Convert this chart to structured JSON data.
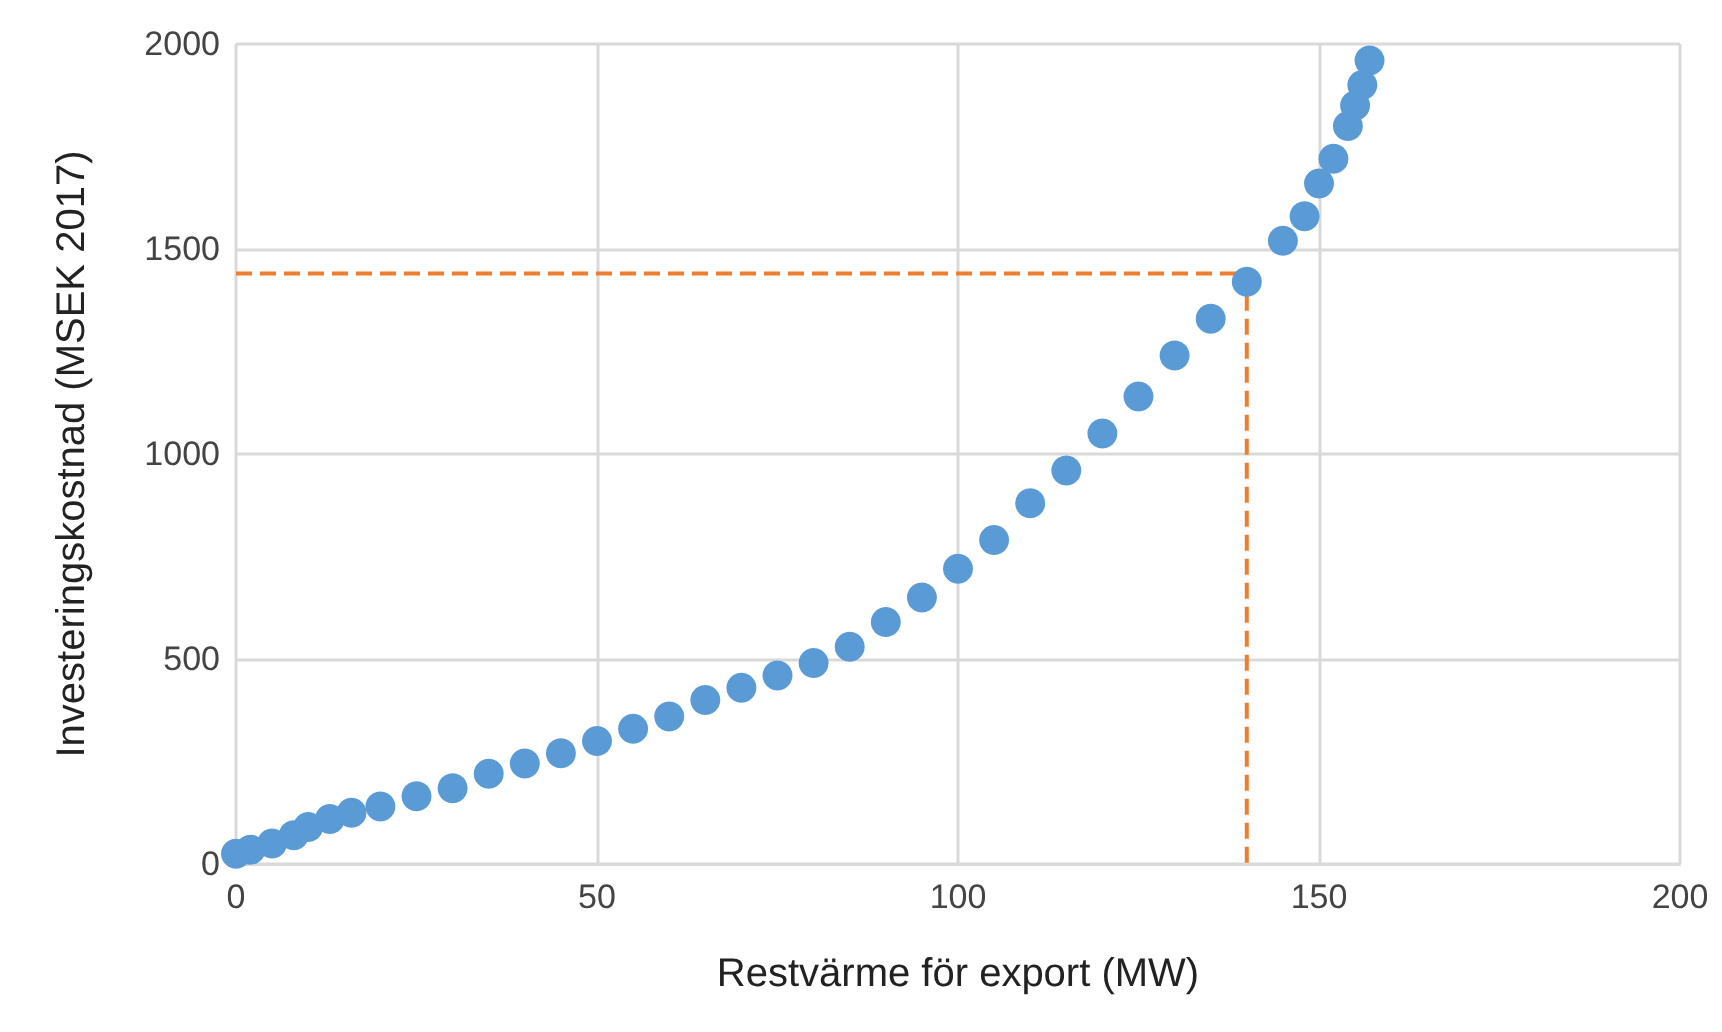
{
  "chart_data": {
    "type": "scatter",
    "xlabel": "Restvärme för export (MW)",
    "ylabel": "Investeringskostnad (MSEK 2017)",
    "xlim": [
      0,
      200
    ],
    "xticks": [
      0,
      50,
      100,
      150,
      200
    ],
    "ylim": [
      0,
      2000
    ],
    "yticks": [
      0,
      500,
      1000,
      1500,
      2000
    ],
    "grid": true,
    "marker": "circle",
    "series": [
      {
        "color": "#5b9bd5",
        "x": [
          0,
          2,
          5,
          8,
          10,
          13,
          16,
          20,
          25,
          30,
          35,
          40,
          45,
          50,
          55,
          60,
          65,
          70,
          75,
          80,
          85,
          90,
          95,
          100,
          105,
          110,
          115,
          120,
          125,
          130,
          135,
          140,
          145,
          148,
          150,
          152,
          154,
          155,
          156,
          157
        ],
        "values": [
          25,
          35,
          50,
          70,
          90,
          110,
          125,
          140,
          165,
          185,
          220,
          245,
          270,
          300,
          330,
          360,
          400,
          430,
          460,
          490,
          530,
          590,
          650,
          720,
          790,
          880,
          960,
          1050,
          1140,
          1240,
          1330,
          1420,
          1520,
          1580,
          1660,
          1720,
          1800,
          1850,
          1900,
          1960
        ]
      },
      {
        "type": "line",
        "color": "#ed7d31",
        "line_style": "dashed",
        "marker": "none",
        "x": [
          0,
          140,
          140
        ],
        "values": [
          1440,
          1440,
          0
        ]
      }
    ]
  }
}
